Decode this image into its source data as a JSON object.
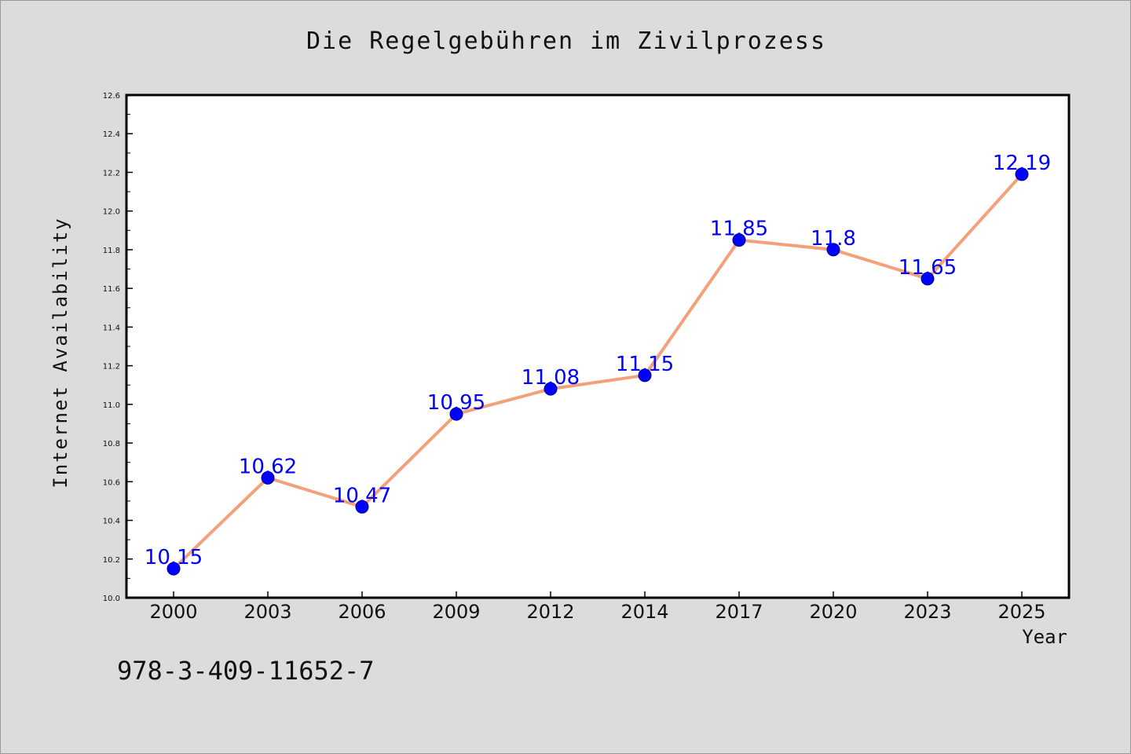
{
  "chart_data": {
    "type": "line",
    "title": "Die Regelgebühren im Zivilprozess",
    "xlabel": "Year",
    "ylabel": "Internet Availability",
    "categories": [
      "2000",
      "2003",
      "2006",
      "2009",
      "2012",
      "2014",
      "2017",
      "2020",
      "2023",
      "2025"
    ],
    "series": [
      {
        "values": [
          10.15,
          10.62,
          10.47,
          10.95,
          11.08,
          11.15,
          11.85,
          11.8,
          11.65,
          12.19
        ],
        "data_labels": [
          "10.15",
          "10.62",
          "10.47",
          "10.95",
          "11.08",
          "11.15",
          "11.85",
          "11.8",
          "11.65",
          "12.19"
        ]
      }
    ],
    "ylim": [
      10.0,
      12.6
    ],
    "yticks": [
      "10.0",
      "10.2",
      "10.4",
      "10.6",
      "10.8",
      "11.0",
      "11.2",
      "11.4",
      "11.6",
      "11.8",
      "12.0",
      "12.2",
      "12.4",
      "12.6"
    ],
    "grid": false,
    "line_color": "#f4a07a",
    "marker_color": "#0000ff",
    "label_color": "#0000ff",
    "footnote": "978-3-409-11652-7"
  }
}
